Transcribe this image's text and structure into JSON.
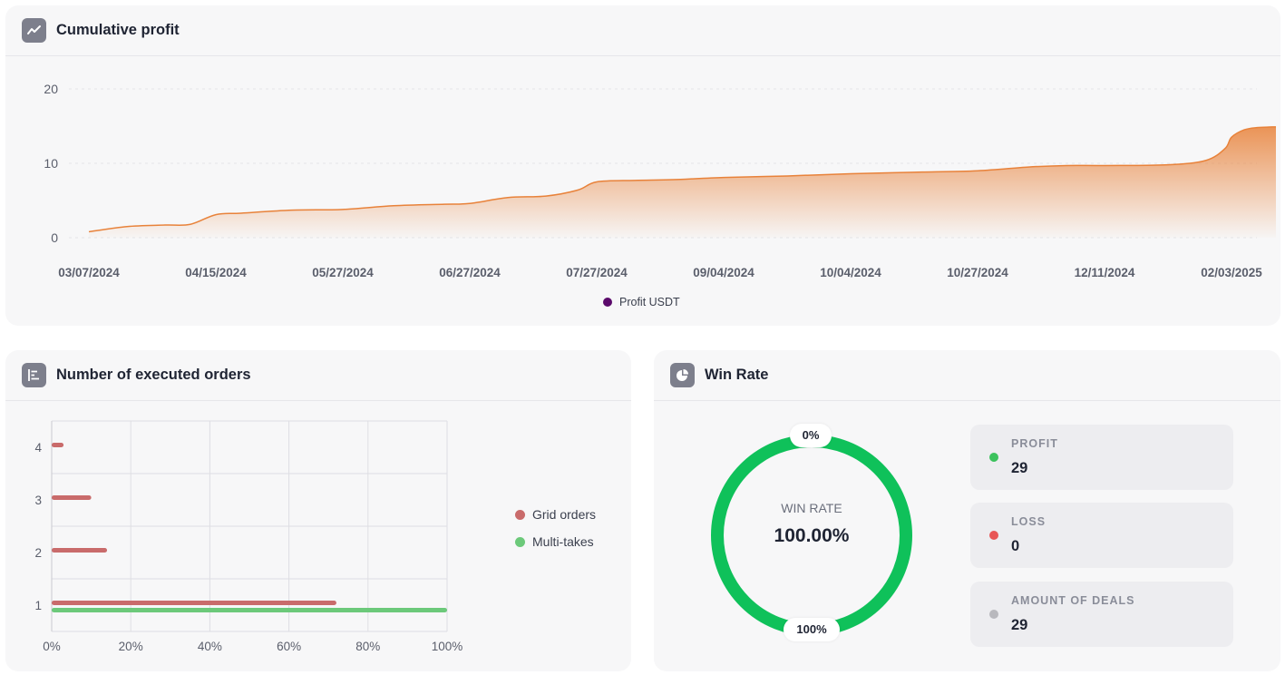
{
  "profit_card": {
    "title": "Cumulative profit",
    "icon": "line-chart-icon",
    "legend": "Profit USDT",
    "legend_color": "#5b0a6b",
    "line_color": "#e8823a"
  },
  "orders_card": {
    "title": "Number of executed orders",
    "icon": "bar-chart-icon",
    "legend": [
      {
        "label": "Grid orders",
        "color": "#c96b6b"
      },
      {
        "label": "Multi-takes",
        "color": "#6cc97a"
      }
    ]
  },
  "winrate_card": {
    "title": "Win Rate",
    "icon": "pie-chart-icon",
    "donut_label": "WIN RATE",
    "donut_value": "100.00%",
    "top_pill": "0%",
    "bottom_pill": "100%",
    "ring_color": "#0fc15a",
    "stats": [
      {
        "label": "PROFIT",
        "value": "29",
        "color": "#3cc25d"
      },
      {
        "label": "LOSS",
        "value": "0",
        "color": "#e85656"
      },
      {
        "label": "AMOUNT OF DEALS",
        "value": "29",
        "color": "#b8b8bd"
      }
    ]
  },
  "chart_data": [
    {
      "type": "area",
      "title": "Cumulative profit",
      "ylim": [
        0,
        20
      ],
      "yticks": [
        "0",
        "10",
        "20"
      ],
      "x_tick_labels": [
        "03/07/2024",
        "04/15/2024",
        "05/27/2024",
        "06/27/2024",
        "07/27/2024",
        "09/04/2024",
        "10/04/2024",
        "10/27/2024",
        "12/11/2024",
        "02/03/2025"
      ],
      "x": [
        0,
        0.3,
        0.6,
        0.8,
        1.0,
        1.2,
        1.6,
        2.0,
        2.4,
        2.8,
        3.0,
        3.3,
        3.6,
        3.85,
        4.0,
        4.3,
        4.6,
        5.0,
        5.5,
        6.0,
        6.5,
        7.0,
        7.4,
        7.7,
        8.0,
        8.5,
        8.8,
        8.95,
        9.0,
        9.1,
        9.2,
        9.35
      ],
      "values": [
        0.8,
        1.5,
        1.7,
        1.8,
        3.1,
        3.3,
        3.7,
        3.8,
        4.3,
        4.5,
        4.6,
        5.4,
        5.6,
        6.4,
        7.5,
        7.7,
        7.8,
        8.1,
        8.3,
        8.6,
        8.8,
        9.0,
        9.5,
        9.7,
        9.7,
        9.8,
        10.4,
        12.0,
        13.5,
        14.5,
        14.8,
        14.9
      ],
      "series": [
        {
          "name": "Profit USDT"
        }
      ],
      "legend": "bottom",
      "grid": true
    },
    {
      "type": "bar",
      "orientation": "horizontal",
      "title": "Number of executed orders",
      "categories": [
        "1",
        "2",
        "3",
        "4"
      ],
      "xlim": [
        0,
        100
      ],
      "xticks": [
        "0%",
        "20%",
        "40%",
        "60%",
        "80%",
        "100%"
      ],
      "series": [
        {
          "name": "Grid orders",
          "values": [
            72,
            14,
            10,
            3
          ]
        },
        {
          "name": "Multi-takes",
          "values": [
            100,
            0,
            0,
            0
          ]
        }
      ],
      "legend": "right",
      "grid": true
    },
    {
      "type": "pie",
      "title": "Win Rate",
      "labels": [
        "PROFIT",
        "LOSS"
      ],
      "values": [
        29,
        0
      ]
    }
  ]
}
